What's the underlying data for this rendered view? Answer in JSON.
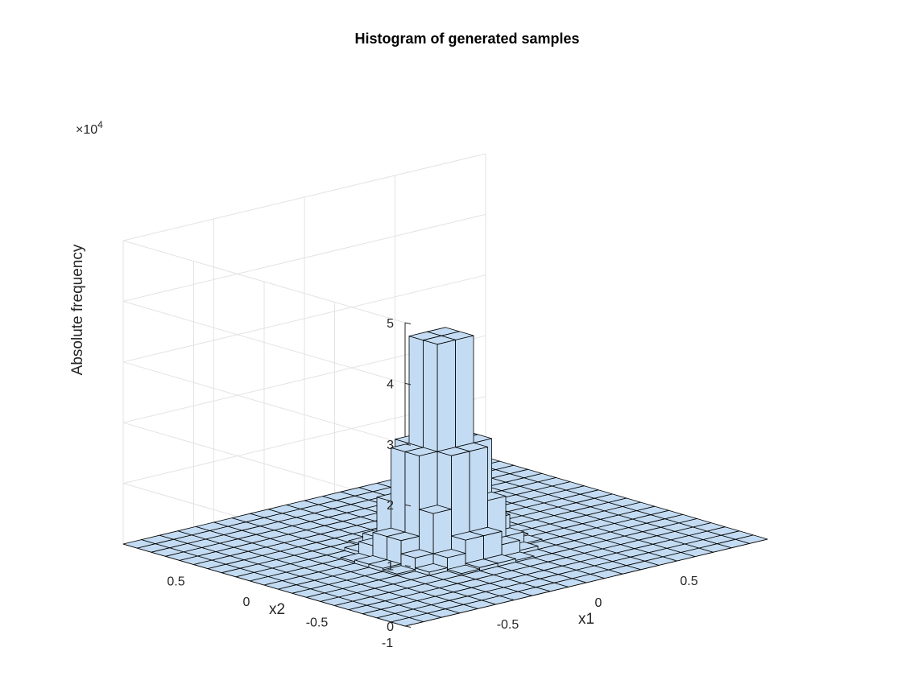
{
  "chart_data": {
    "type": "histogram3d",
    "title": "Histogram of generated samples",
    "xlabel": "x1",
    "ylabel": "x2",
    "zlabel": "Absolute frequency",
    "z_multiplier": "×10",
    "z_exponent": "4",
    "x_range": [
      -1,
      1
    ],
    "y_range": [
      -1,
      1
    ],
    "z_range": [
      0,
      50000
    ],
    "x_ticks": [
      {
        "value": -0.5,
        "label": "-0.5"
      },
      {
        "value": 0,
        "label": "0"
      },
      {
        "value": 0.5,
        "label": "0.5"
      }
    ],
    "y_ticks": [
      {
        "value": -1,
        "label": "-1"
      },
      {
        "value": -0.5,
        "label": "-0.5"
      },
      {
        "value": 0,
        "label": "0"
      },
      {
        "value": 0.5,
        "label": "0.5"
      }
    ],
    "z_ticks": [
      {
        "value": 0,
        "label": "0"
      },
      {
        "value": 10000,
        "label": "1"
      },
      {
        "value": 20000,
        "label": "2"
      },
      {
        "value": 30000,
        "label": "3"
      },
      {
        "value": 40000,
        "label": "4"
      },
      {
        "value": 50000,
        "label": "5"
      }
    ],
    "bins": 20,
    "peak_center": [
      -0.1,
      -0.1
    ],
    "peak_sigma": 0.12,
    "peak_count": 42000,
    "grid": true,
    "bar_color": "#c3dcf3",
    "edge_color": "#000000"
  }
}
